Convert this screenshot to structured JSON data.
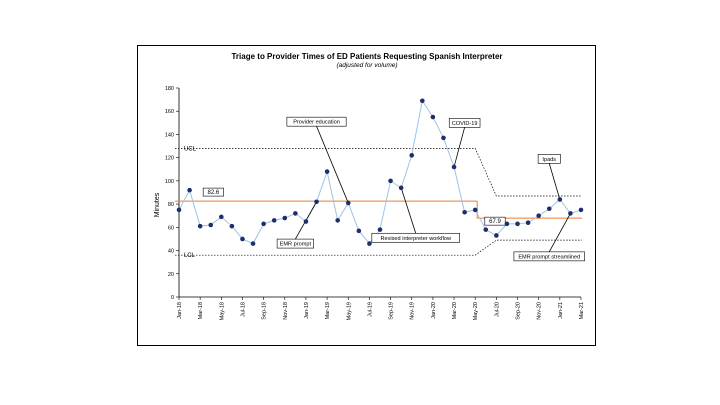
{
  "chart_data": {
    "type": "line",
    "title": "Triage to Provider Times of ED Patients Requesting Spanish Interpreter",
    "subtitle": "(adjusted for volume)",
    "ylabel": "Minutes",
    "xlabel": "",
    "ylim": [
      0,
      180
    ],
    "yticks": [
      0,
      20,
      40,
      60,
      80,
      100,
      120,
      140,
      160,
      180
    ],
    "grid": false,
    "x": [
      "Jan-18",
      "Feb-18",
      "Mar-18",
      "Apr-18",
      "May-18",
      "Jun-18",
      "Jul-18",
      "Aug-18",
      "Sep-18",
      "Oct-18",
      "Nov-18",
      "Dec-18",
      "Jan-19",
      "Feb-19",
      "Mar-19",
      "Apr-19",
      "May-19",
      "Jun-19",
      "Jul-19",
      "Aug-19",
      "Sep-19",
      "Oct-19",
      "Nov-19",
      "Dec-19",
      "Jan-20",
      "Feb-20",
      "Mar-20",
      "Apr-20",
      "May-20",
      "Jun-20",
      "Jul-20",
      "Aug-20",
      "Sep-20",
      "Oct-20",
      "Nov-20",
      "Dec-20",
      "Jan-21",
      "Feb-21",
      "Mar-21"
    ],
    "xtick_labels": [
      "Jan-18",
      "Mar-18",
      "May-18",
      "Jul-18",
      "Sep-18",
      "Nov-18",
      "Jan-19",
      "Mar-19",
      "May-19",
      "Jul-19",
      "Sep-19",
      "Nov-19",
      "Jan-20",
      "Mar-20",
      "May-20",
      "Jul-20",
      "Sep-20",
      "Nov-20",
      "Jan-21",
      "Mar-21"
    ],
    "series": [
      {
        "values": [
          75,
          92,
          61,
          62,
          69,
          61,
          50,
          46,
          63,
          66,
          68,
          72,
          65,
          82,
          108,
          66,
          81,
          57,
          46,
          58,
          100,
          94,
          122,
          169,
          155,
          137,
          112,
          73,
          75,
          58,
          53,
          63,
          63,
          64,
          70,
          76,
          84,
          72,
          75
        ],
        "color": "#9dc3e6",
        "marker_color": "#1f2d6b"
      }
    ],
    "control_lines": {
      "mean_before": 82.6,
      "mean_after": 67.9,
      "ucl_before": 128,
      "lcl_before": 36,
      "ucl_after": 87,
      "lcl_after": 49,
      "shift_start_index": 28,
      "shift_end_index": 30,
      "mean_color": "#ed7d31",
      "ucl_label": "UCL",
      "lcl_label": "LCL",
      "mean_before_label": "82.6",
      "mean_after_label": "67.9"
    },
    "annotations": [
      {
        "text": "Provider education",
        "point_index": 16
      },
      {
        "text": "EMR prompt",
        "point_index": 13
      },
      {
        "text": "Revised interpreter workflow",
        "point_index": 21
      },
      {
        "text": "COVID-19",
        "point_index": 26
      },
      {
        "text": "Ipads",
        "point_index": 36
      },
      {
        "text": "EMR prompt streamlined",
        "point_index": 37
      }
    ]
  }
}
